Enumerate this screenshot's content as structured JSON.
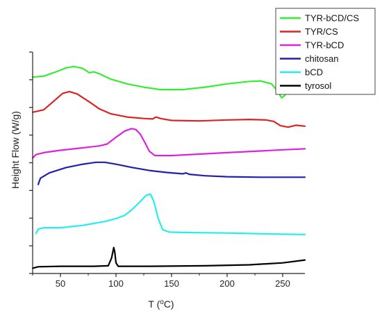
{
  "chart_data": {
    "type": "line",
    "title": "",
    "xlabel": "T (°C)",
    "ylabel": "Height Flow (W/g)",
    "xlim": [
      25,
      270
    ],
    "x_ticks": [
      50,
      100,
      150,
      200,
      250
    ],
    "y_ticks_count": 9,
    "y_tick_labels_shown": false,
    "grid": false,
    "legend_position": "top-right",
    "series": [
      {
        "name": "TYR-bCD/CS",
        "color": "#33ee33",
        "points": [
          [
            25,
            -2.2
          ],
          [
            35,
            -2.0
          ],
          [
            45,
            -1.2
          ],
          [
            55,
            -0.3
          ],
          [
            62,
            0
          ],
          [
            70,
            -0.4
          ],
          [
            76,
            -1.3
          ],
          [
            80,
            -1.1
          ],
          [
            85,
            -1.5
          ],
          [
            95,
            -2.6
          ],
          [
            110,
            -3.6
          ],
          [
            125,
            -4.3
          ],
          [
            140,
            -4.8
          ],
          [
            160,
            -4.8
          ],
          [
            180,
            -4.3
          ],
          [
            200,
            -3.6
          ],
          [
            220,
            -3.1
          ],
          [
            230,
            -3.0
          ],
          [
            240,
            -3.6
          ],
          [
            245,
            -5.0
          ],
          [
            249,
            -6.5
          ],
          [
            252,
            -6.0
          ],
          [
            256,
            -4.6
          ],
          [
            260,
            -4.2
          ],
          [
            265,
            -4.4
          ],
          [
            270,
            -4.6
          ]
        ]
      },
      {
        "name": "TYR/CS",
        "color": "#dd2222",
        "points": [
          [
            25,
            -9.5
          ],
          [
            35,
            -9.0
          ],
          [
            45,
            -7.0
          ],
          [
            52,
            -5.6
          ],
          [
            58,
            -5.2
          ],
          [
            65,
            -5.7
          ],
          [
            75,
            -7.2
          ],
          [
            85,
            -8.8
          ],
          [
            95,
            -9.8
          ],
          [
            110,
            -10.5
          ],
          [
            125,
            -10.8
          ],
          [
            133,
            -10.9
          ],
          [
            136,
            -10.5
          ],
          [
            140,
            -10.8
          ],
          [
            150,
            -11.2
          ],
          [
            175,
            -11.3
          ],
          [
            200,
            -11.1
          ],
          [
            220,
            -11.0
          ],
          [
            235,
            -11.1
          ],
          [
            242,
            -11.4
          ],
          [
            248,
            -12.3
          ],
          [
            255,
            -12.6
          ],
          [
            262,
            -12.2
          ],
          [
            270,
            -12.4
          ]
        ]
      },
      {
        "name": "TYR-bCD",
        "color": "#dd22dd",
        "points": [
          [
            25,
            -19.0
          ],
          [
            28,
            -18.3
          ],
          [
            35,
            -17.9
          ],
          [
            50,
            -17.4
          ],
          [
            70,
            -16.9
          ],
          [
            85,
            -16.5
          ],
          [
            92,
            -16.1
          ],
          [
            100,
            -14.7
          ],
          [
            108,
            -13.4
          ],
          [
            114,
            -12.9
          ],
          [
            118,
            -13.1
          ],
          [
            122,
            -14.1
          ],
          [
            126,
            -15.8
          ],
          [
            130,
            -17.6
          ],
          [
            135,
            -18.5
          ],
          [
            150,
            -18.5
          ],
          [
            175,
            -18.2
          ],
          [
            200,
            -17.9
          ],
          [
            225,
            -17.6
          ],
          [
            250,
            -17.3
          ],
          [
            270,
            -17.1
          ]
        ]
      },
      {
        "name": "chitosan",
        "color": "#1f1faf",
        "points": [
          [
            30,
            -24.5
          ],
          [
            32,
            -23.2
          ],
          [
            40,
            -22.1
          ],
          [
            55,
            -21.0
          ],
          [
            70,
            -20.3
          ],
          [
            82,
            -19.9
          ],
          [
            90,
            -19.9
          ],
          [
            100,
            -20.3
          ],
          [
            115,
            -21.0
          ],
          [
            130,
            -21.6
          ],
          [
            145,
            -22.0
          ],
          [
            160,
            -22.3
          ],
          [
            163,
            -22.1
          ],
          [
            166,
            -22.4
          ],
          [
            180,
            -22.7
          ],
          [
            200,
            -22.9
          ],
          [
            230,
            -23.0
          ],
          [
            270,
            -23.0
          ]
        ]
      },
      {
        "name": "bCD",
        "color": "#22eeee",
        "points": [
          [
            28,
            -34.7
          ],
          [
            30,
            -33.8
          ],
          [
            35,
            -33.5
          ],
          [
            50,
            -33.5
          ],
          [
            70,
            -33.0
          ],
          [
            90,
            -32.2
          ],
          [
            100,
            -31.6
          ],
          [
            108,
            -30.9
          ],
          [
            115,
            -29.6
          ],
          [
            122,
            -28.0
          ],
          [
            127,
            -26.8
          ],
          [
            131,
            -26.5
          ],
          [
            134,
            -28.0
          ],
          [
            138,
            -31.6
          ],
          [
            142,
            -33.9
          ],
          [
            148,
            -34.4
          ],
          [
            170,
            -34.5
          ],
          [
            200,
            -34.6
          ],
          [
            240,
            -34.8
          ],
          [
            270,
            -34.9
          ]
        ]
      },
      {
        "name": "tyrosol",
        "color": "#000000",
        "points": [
          [
            25,
            -41.9
          ],
          [
            30,
            -41.6
          ],
          [
            50,
            -41.5
          ],
          [
            80,
            -41.5
          ],
          [
            93,
            -41.4
          ],
          [
            96,
            -39.8
          ],
          [
            98,
            -37.6
          ],
          [
            99,
            -38.7
          ],
          [
            100,
            -40.8
          ],
          [
            102,
            -41.5
          ],
          [
            130,
            -41.5
          ],
          [
            180,
            -41.4
          ],
          [
            220,
            -41.2
          ],
          [
            250,
            -40.8
          ],
          [
            270,
            -40.2
          ]
        ]
      }
    ]
  }
}
